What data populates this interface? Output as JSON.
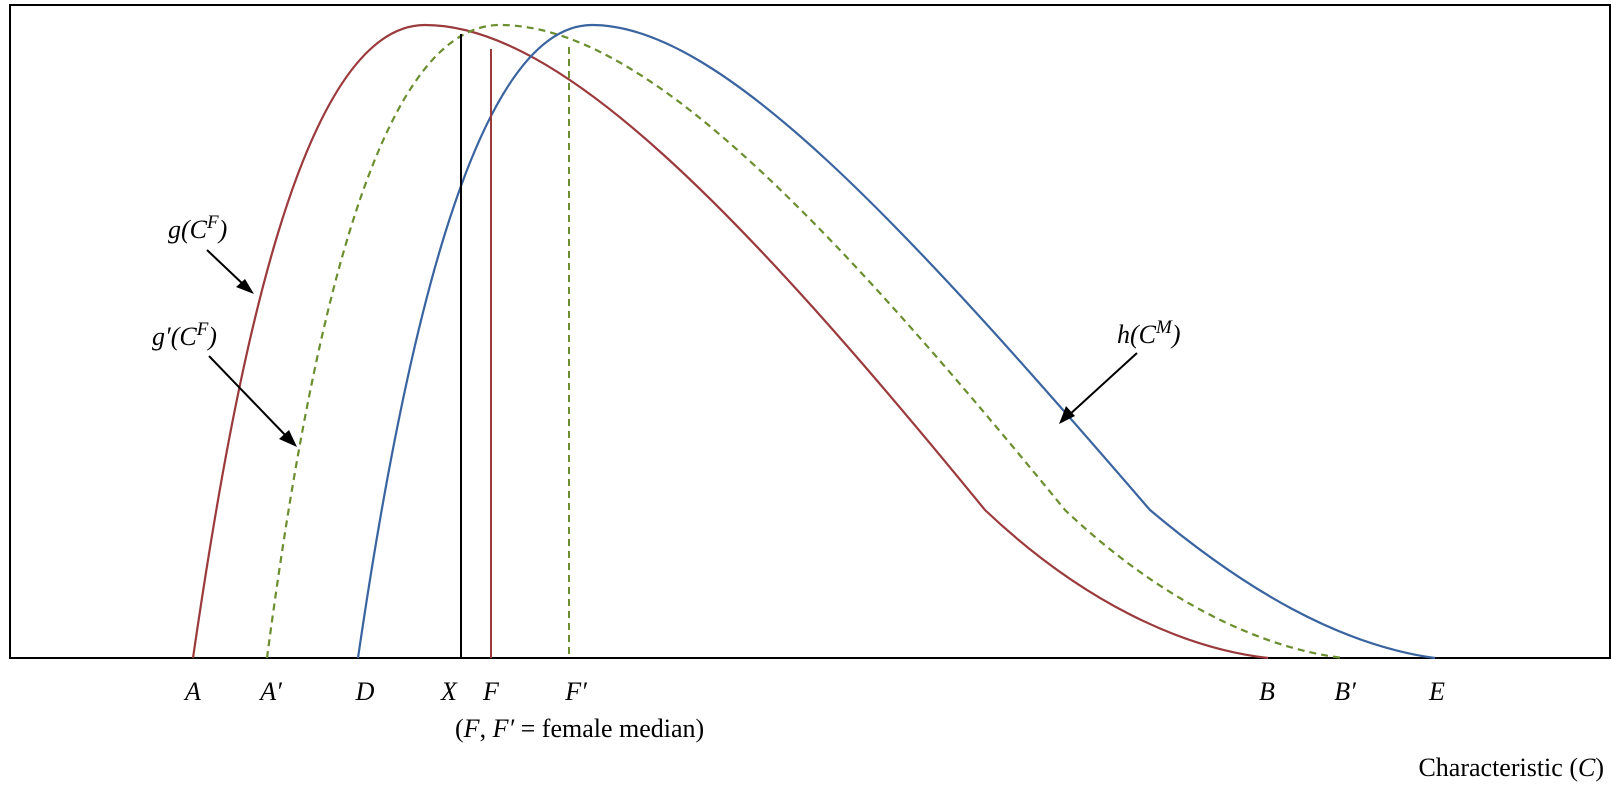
{
  "colors": {
    "g_curve": "#9b3a3c",
    "g_prime_curve": "#6b8e2e",
    "h_curve": "#3a64a0",
    "x_line": "#000000",
    "frame": "#000000"
  },
  "curve_labels": {
    "g": {
      "fn": "g(C",
      "sup": "F",
      "close": ")"
    },
    "g_prime": {
      "fn": "g′(C",
      "sup": "F",
      "close": ")"
    },
    "h": {
      "fn": "h(C",
      "sup": "M",
      "close": ")"
    }
  },
  "axis_points": {
    "A": "A",
    "A_prime": "A′",
    "D": "D",
    "X": "X",
    "F": "F",
    "F_prime": "F′",
    "B": "B",
    "B_prime": "B′",
    "E": "E"
  },
  "median_note": {
    "open": "(",
    "F": "F",
    "comma": ", ",
    "F_prime": "F′",
    "rest": " = female median)"
  },
  "axis_title": {
    "text": "Characteristic (",
    "var": "C",
    "close": ")"
  }
}
